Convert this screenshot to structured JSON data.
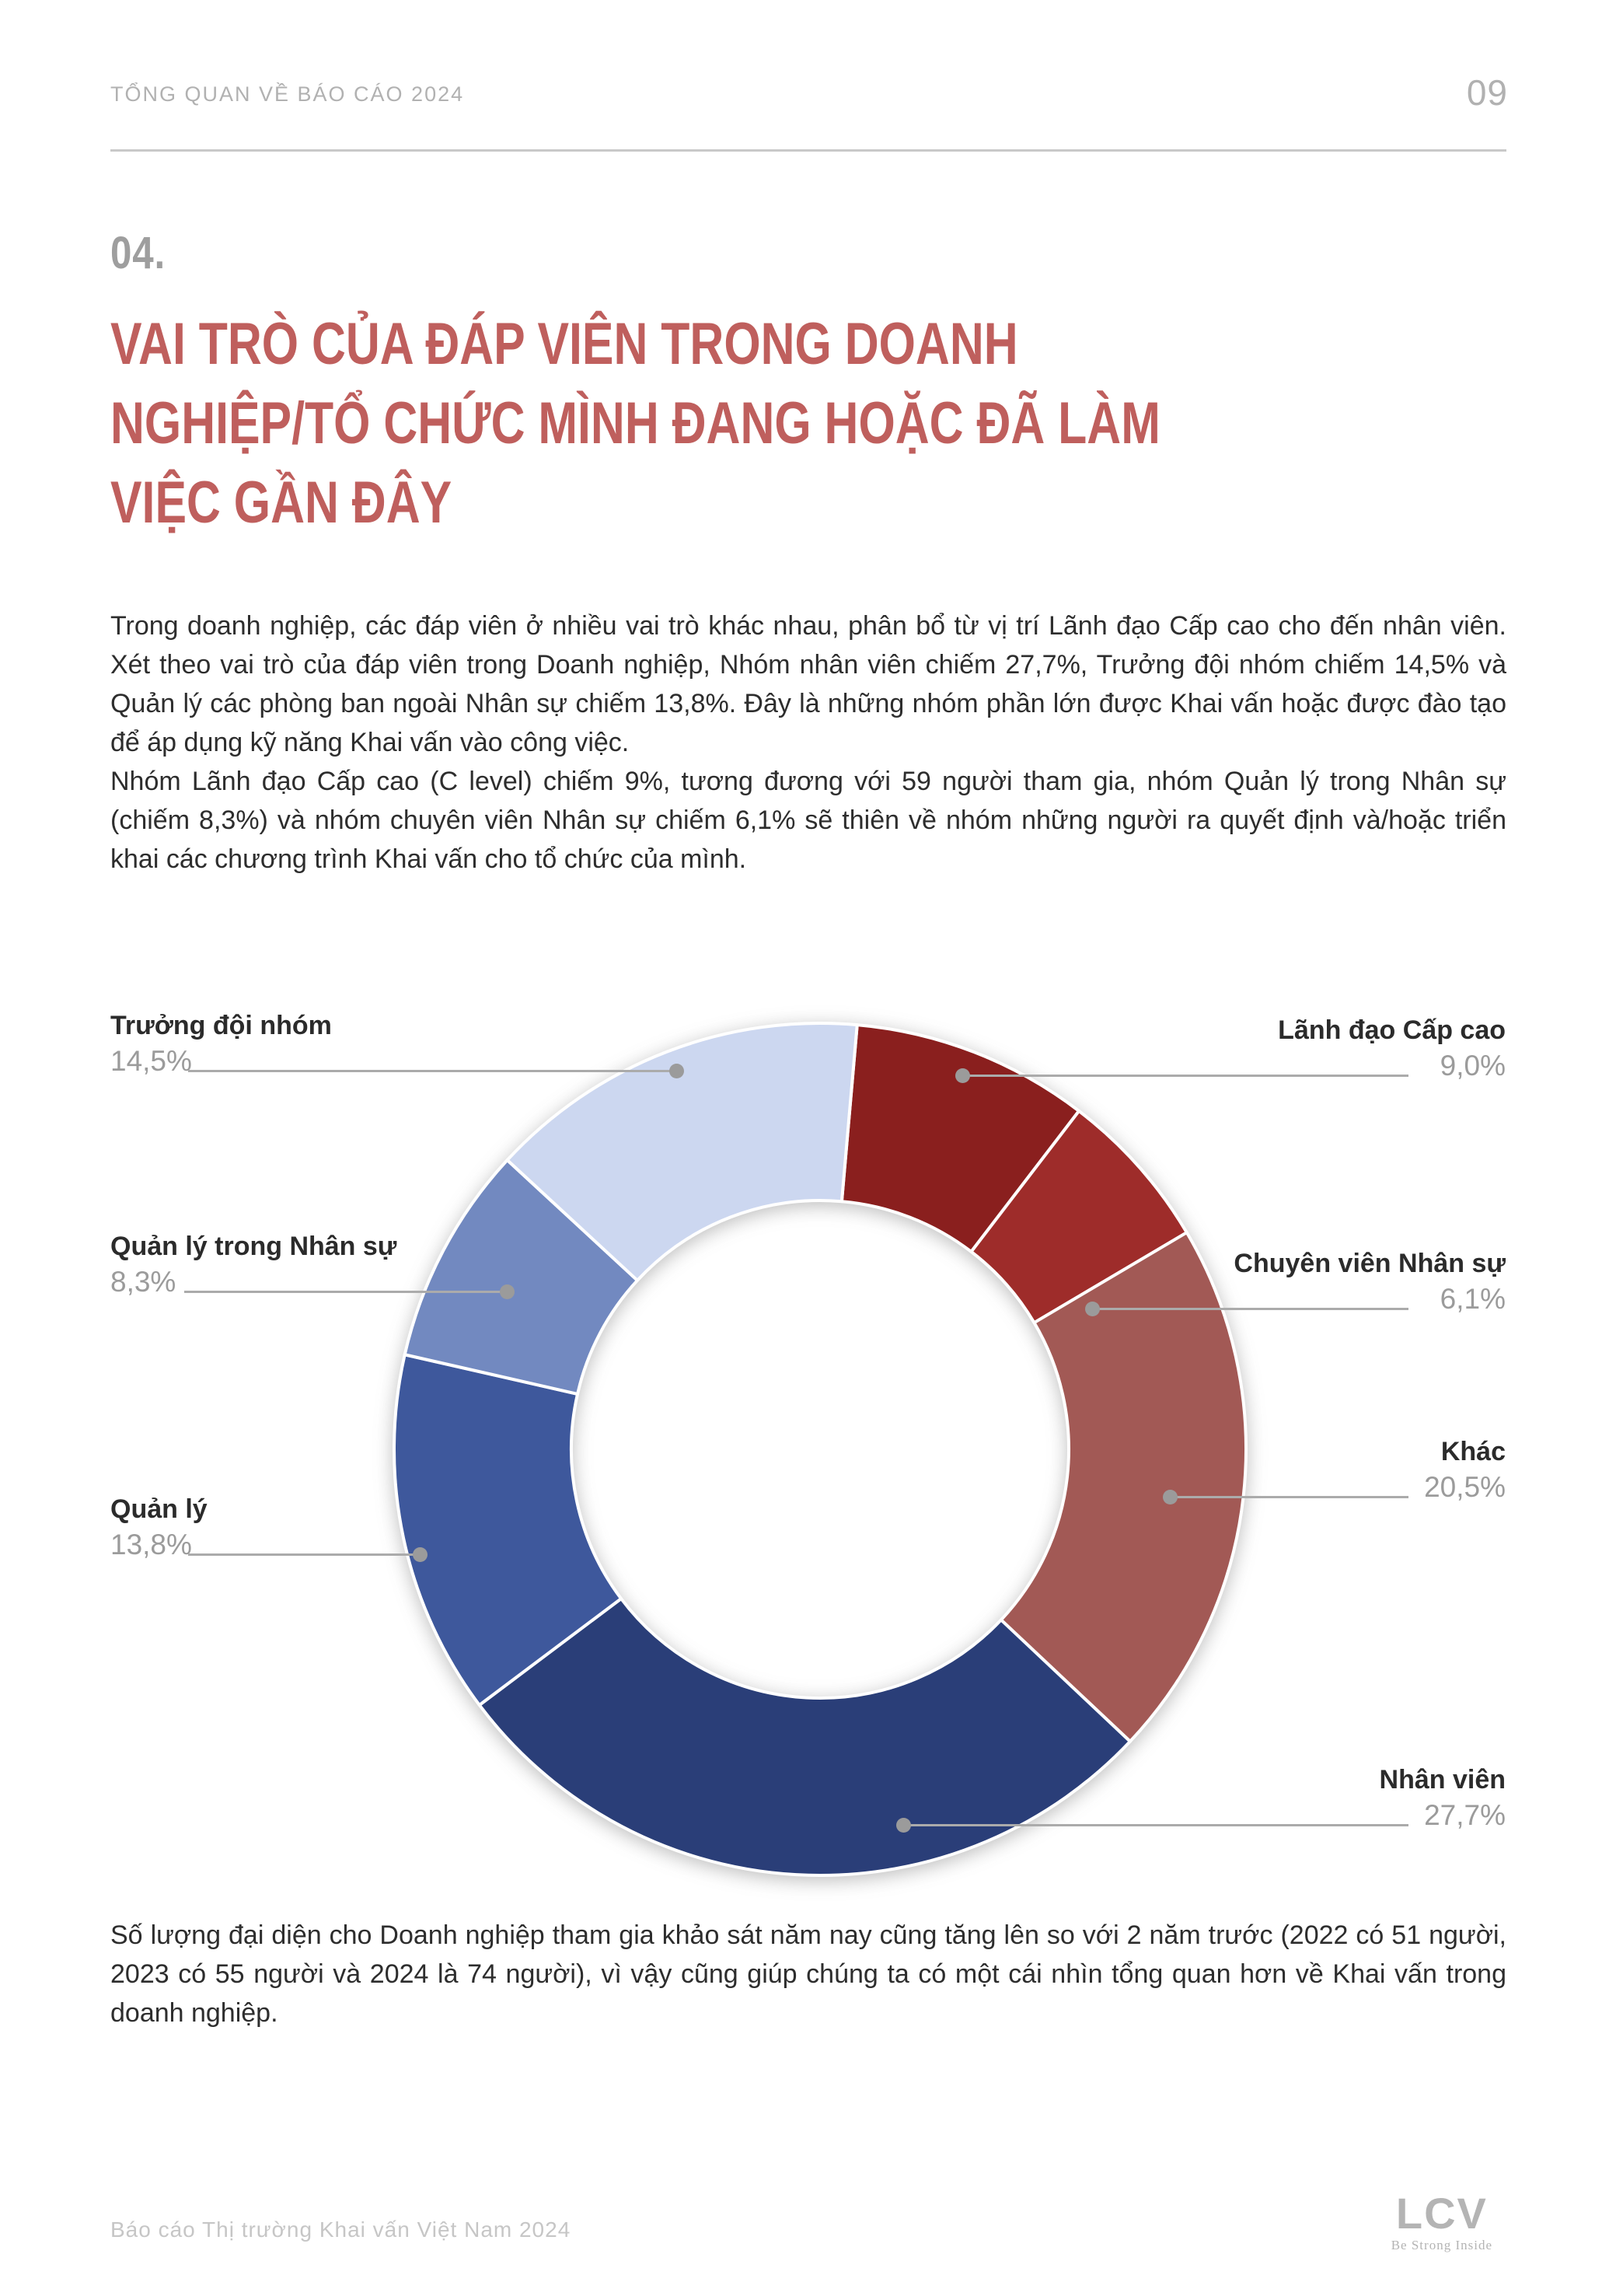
{
  "header": {
    "breadcrumb": "TỔNG QUAN VỀ BÁO CÁO 2024",
    "page_number": "09"
  },
  "section": {
    "number": "04.",
    "title_lines": [
      "VAI TRÒ CỦA ĐÁP VIÊN TRONG DOANH",
      "NGHIỆP/TỔ CHỨC MÌNH ĐANG HOẶC ĐÃ LÀM",
      "VIỆC GẦN ĐÂY"
    ]
  },
  "intro_paragraphs": [
    "Trong doanh nghiệp, các đáp viên ở nhiều vai trò khác nhau, phân bổ từ vị trí Lãnh đạo Cấp cao cho đến nhân viên. Xét theo vai trò của đáp viên trong Doanh nghiệp, Nhóm nhân viên chiếm 27,7%, Trưởng đội nhóm chiếm 14,5% và Quản lý các phòng ban ngoài Nhân sự chiếm 13,8%. Đây là những nhóm phần lớn được Khai vấn hoặc được đào tạo để áp dụng kỹ năng Khai vấn vào công việc.",
    "Nhóm Lãnh đạo Cấp cao (C level) chiếm 9%, tương đương với 59 người tham gia, nhóm Quản lý trong Nhân sự (chiếm 8,3%) và nhóm chuyên viên Nhân sự chiếm 6,1% sẽ thiên về nhóm những người ra quyết định và/hoặc triển khai các chương trình Khai vấn cho tổ chức của mình."
  ],
  "closing_paragraph": "Số lượng đại diện cho Doanh nghiệp tham gia khảo sát năm nay cũng tăng lên so với 2 năm trước (2022 có 51 người, 2023 có 55 người và 2024 là 74 người), vì vậy cũng giúp chúng ta có một cái nhìn tổng quan hơn về Khai vấn trong doanh nghiệp.",
  "chart_data": {
    "type": "pie",
    "subtype": "donut",
    "title": "Vai trò của đáp viên trong doanh nghiệp",
    "unit": "%",
    "start_angle_deg": 5,
    "legend_position": "callouts",
    "slices": [
      {
        "label": "Lãnh đạo Cấp cao",
        "value": 9.0,
        "display": "9,0%",
        "color": "#8a1f1e",
        "side": "right"
      },
      {
        "label": "Chuyên viên Nhân sự",
        "value": 6.1,
        "display": "6,1%",
        "color": "#9e2c2a",
        "side": "right"
      },
      {
        "label": "Khác",
        "value": 20.5,
        "display": "20,5%",
        "color": "#a25955",
        "side": "right"
      },
      {
        "label": "Nhân viên",
        "value": 27.7,
        "display": "27,7%",
        "color": "#2a3e78",
        "side": "right"
      },
      {
        "label": "Quản lý",
        "value": 13.8,
        "display": "13,8%",
        "color": "#3e589c",
        "side": "left"
      },
      {
        "label": "Quản lý trong Nhân sự",
        "value": 8.3,
        "display": "8,3%",
        "color": "#7289c0",
        "side": "left"
      },
      {
        "label": "Trưởng đội nhóm",
        "value": 14.5,
        "display": "14,5%",
        "color": "#ccd7f0",
        "side": "left"
      }
    ]
  },
  "footer": {
    "report_name": "Báo cáo Thị trường Khai vấn Việt Nam 2024",
    "logo_text": "LCV",
    "logo_tagline": "Be Strong Inside"
  },
  "colors": {
    "title_accent": "#bf5f5d",
    "muted_gray": "#9b9b9b",
    "leader_line": "#ababab",
    "body_text": "#2d2d2d",
    "header_gray": "#b1b1b1",
    "footer_gray": "#c6c6c6"
  }
}
